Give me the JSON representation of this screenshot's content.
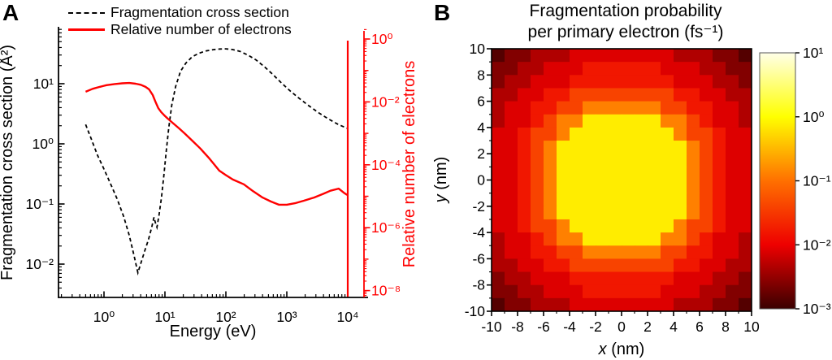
{
  "figure": {
    "background": "#ffffff",
    "panel_a": {
      "label": "A",
      "legend": [
        {
          "label": "Fragmentation cross section",
          "line": "dashed",
          "color": "#000000"
        },
        {
          "label": "Relative number of electrons",
          "line": "solid",
          "color": "#ff0000"
        }
      ],
      "x_axis": {
        "label": "Energy (eV)",
        "tick_exps": [
          0,
          1,
          2,
          3,
          4
        ],
        "tick_labels": [
          "10⁰",
          "10¹",
          "10²",
          "10³",
          "10⁴"
        ]
      },
      "y_left": {
        "label": "Fragmentation cross section (Å²)",
        "tick_exps": [
          1,
          0,
          -1,
          -2
        ],
        "tick_labels": [
          "10¹",
          "10⁰",
          "10⁻¹",
          "10⁻²"
        ],
        "color": "#000000"
      },
      "y_right": {
        "label": "Relative number of electrons",
        "tick_exps": [
          0,
          -2,
          -4,
          -6,
          -8
        ],
        "tick_labels": [
          "10⁰",
          "10⁻²",
          "10⁻⁴",
          "10⁻⁶",
          "10⁻⁸"
        ],
        "color": "#ff0000"
      }
    },
    "panel_b": {
      "label": "B",
      "title_line1": "Fragmentation probability",
      "title_line2": "per primary electron (fs⁻¹)",
      "x_axis": {
        "label_var": "x",
        "label_unit": " (nm)",
        "ticks": [
          -10,
          -8,
          -6,
          -4,
          -2,
          0,
          2,
          4,
          6,
          8,
          10
        ]
      },
      "y_axis": {
        "label_var": "y",
        "label_unit": " (nm)",
        "ticks": [
          10,
          8,
          6,
          4,
          2,
          0,
          -2,
          -4,
          -6,
          -8,
          -10
        ]
      },
      "colorbar": {
        "tick_exps": [
          1,
          0,
          -1,
          -2,
          -3
        ],
        "tick_labels": [
          "10¹",
          "10⁰",
          "10⁻¹",
          "10⁻²",
          "10⁻³"
        ],
        "min": 0.001,
        "max": 10
      }
    },
    "colors": {
      "accent_red": "#ff0000",
      "black": "#000000",
      "colormap_anchors": [
        "#3a0000",
        "#ee0000",
        "#ff7000",
        "#ffff00",
        "#ffffe8"
      ]
    }
  },
  "chart_data": [
    {
      "type": "line",
      "panel": "A",
      "x_label": "Energy (eV)",
      "x_scale": "log",
      "x_range": [
        0.18,
        18500
      ],
      "series": [
        {
          "name": "Fragmentation cross section",
          "axis": "left",
          "unit": "Å²",
          "style": "dashed",
          "color": "#000000",
          "y_scale": "log",
          "y_range": [
            0.003,
            85
          ],
          "points": [
            [
              0.5,
              2.1
            ],
            [
              0.62,
              1.2
            ],
            [
              0.78,
              0.65
            ],
            [
              1,
              0.38
            ],
            [
              1.3,
              0.21
            ],
            [
              1.65,
              0.12
            ],
            [
              2.1,
              0.062
            ],
            [
              2.6,
              0.03
            ],
            [
              3.1,
              0.014
            ],
            [
              3.6,
              0.0072
            ],
            [
              4.1,
              0.011
            ],
            [
              4.7,
              0.017
            ],
            [
              5.4,
              0.026
            ],
            [
              6.1,
              0.042
            ],
            [
              6.6,
              0.06
            ],
            [
              7.0,
              0.048
            ],
            [
              7.4,
              0.041
            ],
            [
              8,
              0.065
            ],
            [
              8.8,
              0.13
            ],
            [
              9.6,
              0.3
            ],
            [
              10.5,
              0.75
            ],
            [
              11.5,
              1.8
            ],
            [
              13,
              4.5
            ],
            [
              15,
              9
            ],
            [
              18,
              16
            ],
            [
              22,
              22
            ],
            [
              28,
              28
            ],
            [
              36,
              32
            ],
            [
              47,
              35
            ],
            [
              62,
              36.8
            ],
            [
              80,
              37.8
            ],
            [
              100,
              38
            ],
            [
              130,
              37
            ],
            [
              170,
              34.5
            ],
            [
              230,
              30
            ],
            [
              310,
              25
            ],
            [
              420,
              19.5
            ],
            [
              580,
              14.5
            ],
            [
              800,
              10.5
            ],
            [
              1100,
              7.8
            ],
            [
              1600,
              5.7
            ],
            [
              2300,
              4.3
            ],
            [
              3300,
              3.3
            ],
            [
              4800,
              2.6
            ],
            [
              7000,
              2.1
            ],
            [
              10000,
              1.8
            ]
          ]
        },
        {
          "name": "Relative number of electrons",
          "axis": "right",
          "style": "solid",
          "color": "#ff0000",
          "y_scale": "log",
          "y_range": [
            6.3e-09,
            2.2
          ],
          "points": [
            [
              0.5,
              0.021
            ],
            [
              0.65,
              0.026
            ],
            [
              0.85,
              0.03
            ],
            [
              1.1,
              0.034
            ],
            [
              1.5,
              0.037
            ],
            [
              2,
              0.039
            ],
            [
              2.6,
              0.04
            ],
            [
              3.3,
              0.038
            ],
            [
              4,
              0.035
            ],
            [
              4.8,
              0.03
            ],
            [
              5.5,
              0.025
            ],
            [
              6.3,
              0.0165
            ],
            [
              7,
              0.01
            ],
            [
              7.8,
              0.0063
            ],
            [
              8.7,
              0.0047
            ],
            [
              9.7,
              0.0038
            ],
            [
              11,
              0.003
            ],
            [
              13.6,
              0.0021
            ],
            [
              17,
              0.00145
            ],
            [
              21,
              0.001
            ],
            [
              28,
              0.00059
            ],
            [
              38,
              0.00033
            ],
            [
              52,
              0.00017
            ],
            [
              65,
              0.0001
            ],
            [
              78,
              6.5e-05
            ],
            [
              100,
              4.7e-05
            ],
            [
              130,
              3.4e-05
            ],
            [
              197,
              2.4e-05
            ],
            [
              280,
              1.45e-05
            ],
            [
              400,
              9.1e-06
            ],
            [
              550,
              6.8e-06
            ],
            [
              740,
              5.4e-06
            ],
            [
              1000,
              5.4e-06
            ],
            [
              1360,
              6e-06
            ],
            [
              1900,
              7.2e-06
            ],
            [
              2800,
              9.1e-06
            ],
            [
              4000,
              1.2e-05
            ],
            [
              5200,
              1.5e-05
            ],
            [
              7100,
              1.75e-05
            ],
            [
              8600,
              1.3e-05
            ],
            [
              9800,
              1.1e-05
            ]
          ]
        }
      ],
      "annotations": [
        {
          "type": "vline",
          "x": 10000,
          "color": "#ff0000"
        }
      ]
    },
    {
      "type": "heatmap",
      "panel": "B",
      "title": "Fragmentation probability per primary electron (fs⁻¹)",
      "x_label": "x (nm)",
      "y_label": "y (nm)",
      "x_range": [
        -10,
        10
      ],
      "y_range": [
        -10,
        10
      ],
      "grid_size": [
        20,
        20
      ],
      "color_scale": "log",
      "color_range": [
        0.001,
        10
      ],
      "values": [
        [
          0.0014,
          0.0025,
          0.0025,
          0.0045,
          0.0045,
          0.0045,
          0.008,
          0.008,
          0.008,
          0.008,
          0.008,
          0.008,
          0.008,
          0.008,
          0.0045,
          0.0045,
          0.0045,
          0.0025,
          0.0025,
          0.0014
        ],
        [
          0.0025,
          0.0025,
          0.0045,
          0.0045,
          0.008,
          0.008,
          0.008,
          0.016,
          0.016,
          0.016,
          0.016,
          0.016,
          0.016,
          0.008,
          0.008,
          0.008,
          0.0045,
          0.0045,
          0.0025,
          0.0025
        ],
        [
          0.0025,
          0.0045,
          0.0045,
          0.008,
          0.008,
          0.008,
          0.016,
          0.016,
          0.016,
          0.016,
          0.016,
          0.016,
          0.016,
          0.016,
          0.008,
          0.008,
          0.008,
          0.0045,
          0.0045,
          0.0025
        ],
        [
          0.0045,
          0.0045,
          0.008,
          0.008,
          0.016,
          0.016,
          0.04,
          0.04,
          0.04,
          0.04,
          0.04,
          0.04,
          0.04,
          0.04,
          0.016,
          0.016,
          0.008,
          0.008,
          0.0045,
          0.0045
        ],
        [
          0.0045,
          0.008,
          0.008,
          0.016,
          0.016,
          0.04,
          0.04,
          0.13,
          0.13,
          0.13,
          0.13,
          0.13,
          0.13,
          0.04,
          0.04,
          0.016,
          0.016,
          0.008,
          0.008,
          0.0045
        ],
        [
          0.0045,
          0.008,
          0.008,
          0.016,
          0.04,
          0.13,
          0.13,
          0.75,
          0.75,
          0.75,
          0.75,
          0.75,
          0.75,
          0.13,
          0.13,
          0.04,
          0.016,
          0.008,
          0.008,
          0.0045
        ],
        [
          0.008,
          0.008,
          0.016,
          0.04,
          0.04,
          0.13,
          0.75,
          0.75,
          0.75,
          0.75,
          0.75,
          0.75,
          0.75,
          0.75,
          0.13,
          0.04,
          0.04,
          0.016,
          0.008,
          0.008
        ],
        [
          0.008,
          0.008,
          0.016,
          0.04,
          0.13,
          0.75,
          0.75,
          0.75,
          0.75,
          0.75,
          0.75,
          0.75,
          0.75,
          0.75,
          0.75,
          0.13,
          0.04,
          0.016,
          0.008,
          0.008
        ],
        [
          0.008,
          0.008,
          0.016,
          0.04,
          0.13,
          0.75,
          0.75,
          0.75,
          0.75,
          0.75,
          0.75,
          0.75,
          0.75,
          0.75,
          0.75,
          0.13,
          0.04,
          0.016,
          0.008,
          0.008
        ],
        [
          0.008,
          0.008,
          0.016,
          0.04,
          0.13,
          0.75,
          0.75,
          0.75,
          0.75,
          0.75,
          0.75,
          0.75,
          0.75,
          0.75,
          0.75,
          0.13,
          0.04,
          0.016,
          0.008,
          0.008
        ],
        [
          0.008,
          0.008,
          0.016,
          0.04,
          0.13,
          0.75,
          0.75,
          0.75,
          0.75,
          0.75,
          0.75,
          0.75,
          0.75,
          0.75,
          0.75,
          0.13,
          0.04,
          0.016,
          0.008,
          0.008
        ],
        [
          0.008,
          0.008,
          0.016,
          0.04,
          0.13,
          0.75,
          0.75,
          0.75,
          0.75,
          0.75,
          0.75,
          0.75,
          0.75,
          0.75,
          0.75,
          0.13,
          0.04,
          0.016,
          0.008,
          0.008
        ],
        [
          0.008,
          0.008,
          0.016,
          0.04,
          0.13,
          0.75,
          0.75,
          0.75,
          0.75,
          0.75,
          0.75,
          0.75,
          0.75,
          0.75,
          0.75,
          0.13,
          0.04,
          0.016,
          0.008,
          0.008
        ],
        [
          0.008,
          0.008,
          0.016,
          0.04,
          0.04,
          0.13,
          0.75,
          0.75,
          0.75,
          0.75,
          0.75,
          0.75,
          0.75,
          0.75,
          0.13,
          0.04,
          0.04,
          0.016,
          0.008,
          0.008
        ],
        [
          0.0045,
          0.008,
          0.008,
          0.016,
          0.04,
          0.13,
          0.13,
          0.75,
          0.75,
          0.75,
          0.75,
          0.75,
          0.75,
          0.13,
          0.13,
          0.04,
          0.016,
          0.008,
          0.008,
          0.0045
        ],
        [
          0.0045,
          0.008,
          0.008,
          0.016,
          0.016,
          0.04,
          0.04,
          0.13,
          0.13,
          0.13,
          0.13,
          0.13,
          0.13,
          0.04,
          0.04,
          0.016,
          0.016,
          0.008,
          0.008,
          0.0045
        ],
        [
          0.0045,
          0.0045,
          0.008,
          0.008,
          0.016,
          0.016,
          0.04,
          0.04,
          0.04,
          0.04,
          0.04,
          0.04,
          0.04,
          0.04,
          0.016,
          0.016,
          0.008,
          0.008,
          0.0045,
          0.0045
        ],
        [
          0.0025,
          0.0045,
          0.0045,
          0.008,
          0.008,
          0.008,
          0.016,
          0.016,
          0.016,
          0.016,
          0.016,
          0.016,
          0.016,
          0.016,
          0.008,
          0.008,
          0.008,
          0.0045,
          0.0045,
          0.0025
        ],
        [
          0.0025,
          0.0025,
          0.0045,
          0.0045,
          0.008,
          0.008,
          0.008,
          0.016,
          0.016,
          0.016,
          0.016,
          0.016,
          0.016,
          0.008,
          0.008,
          0.008,
          0.0045,
          0.0045,
          0.0025,
          0.0025
        ],
        [
          0.0014,
          0.0025,
          0.0025,
          0.0045,
          0.0045,
          0.0045,
          0.008,
          0.008,
          0.008,
          0.008,
          0.008,
          0.008,
          0.008,
          0.008,
          0.0045,
          0.0045,
          0.0045,
          0.0025,
          0.0025,
          0.0014
        ]
      ]
    }
  ]
}
